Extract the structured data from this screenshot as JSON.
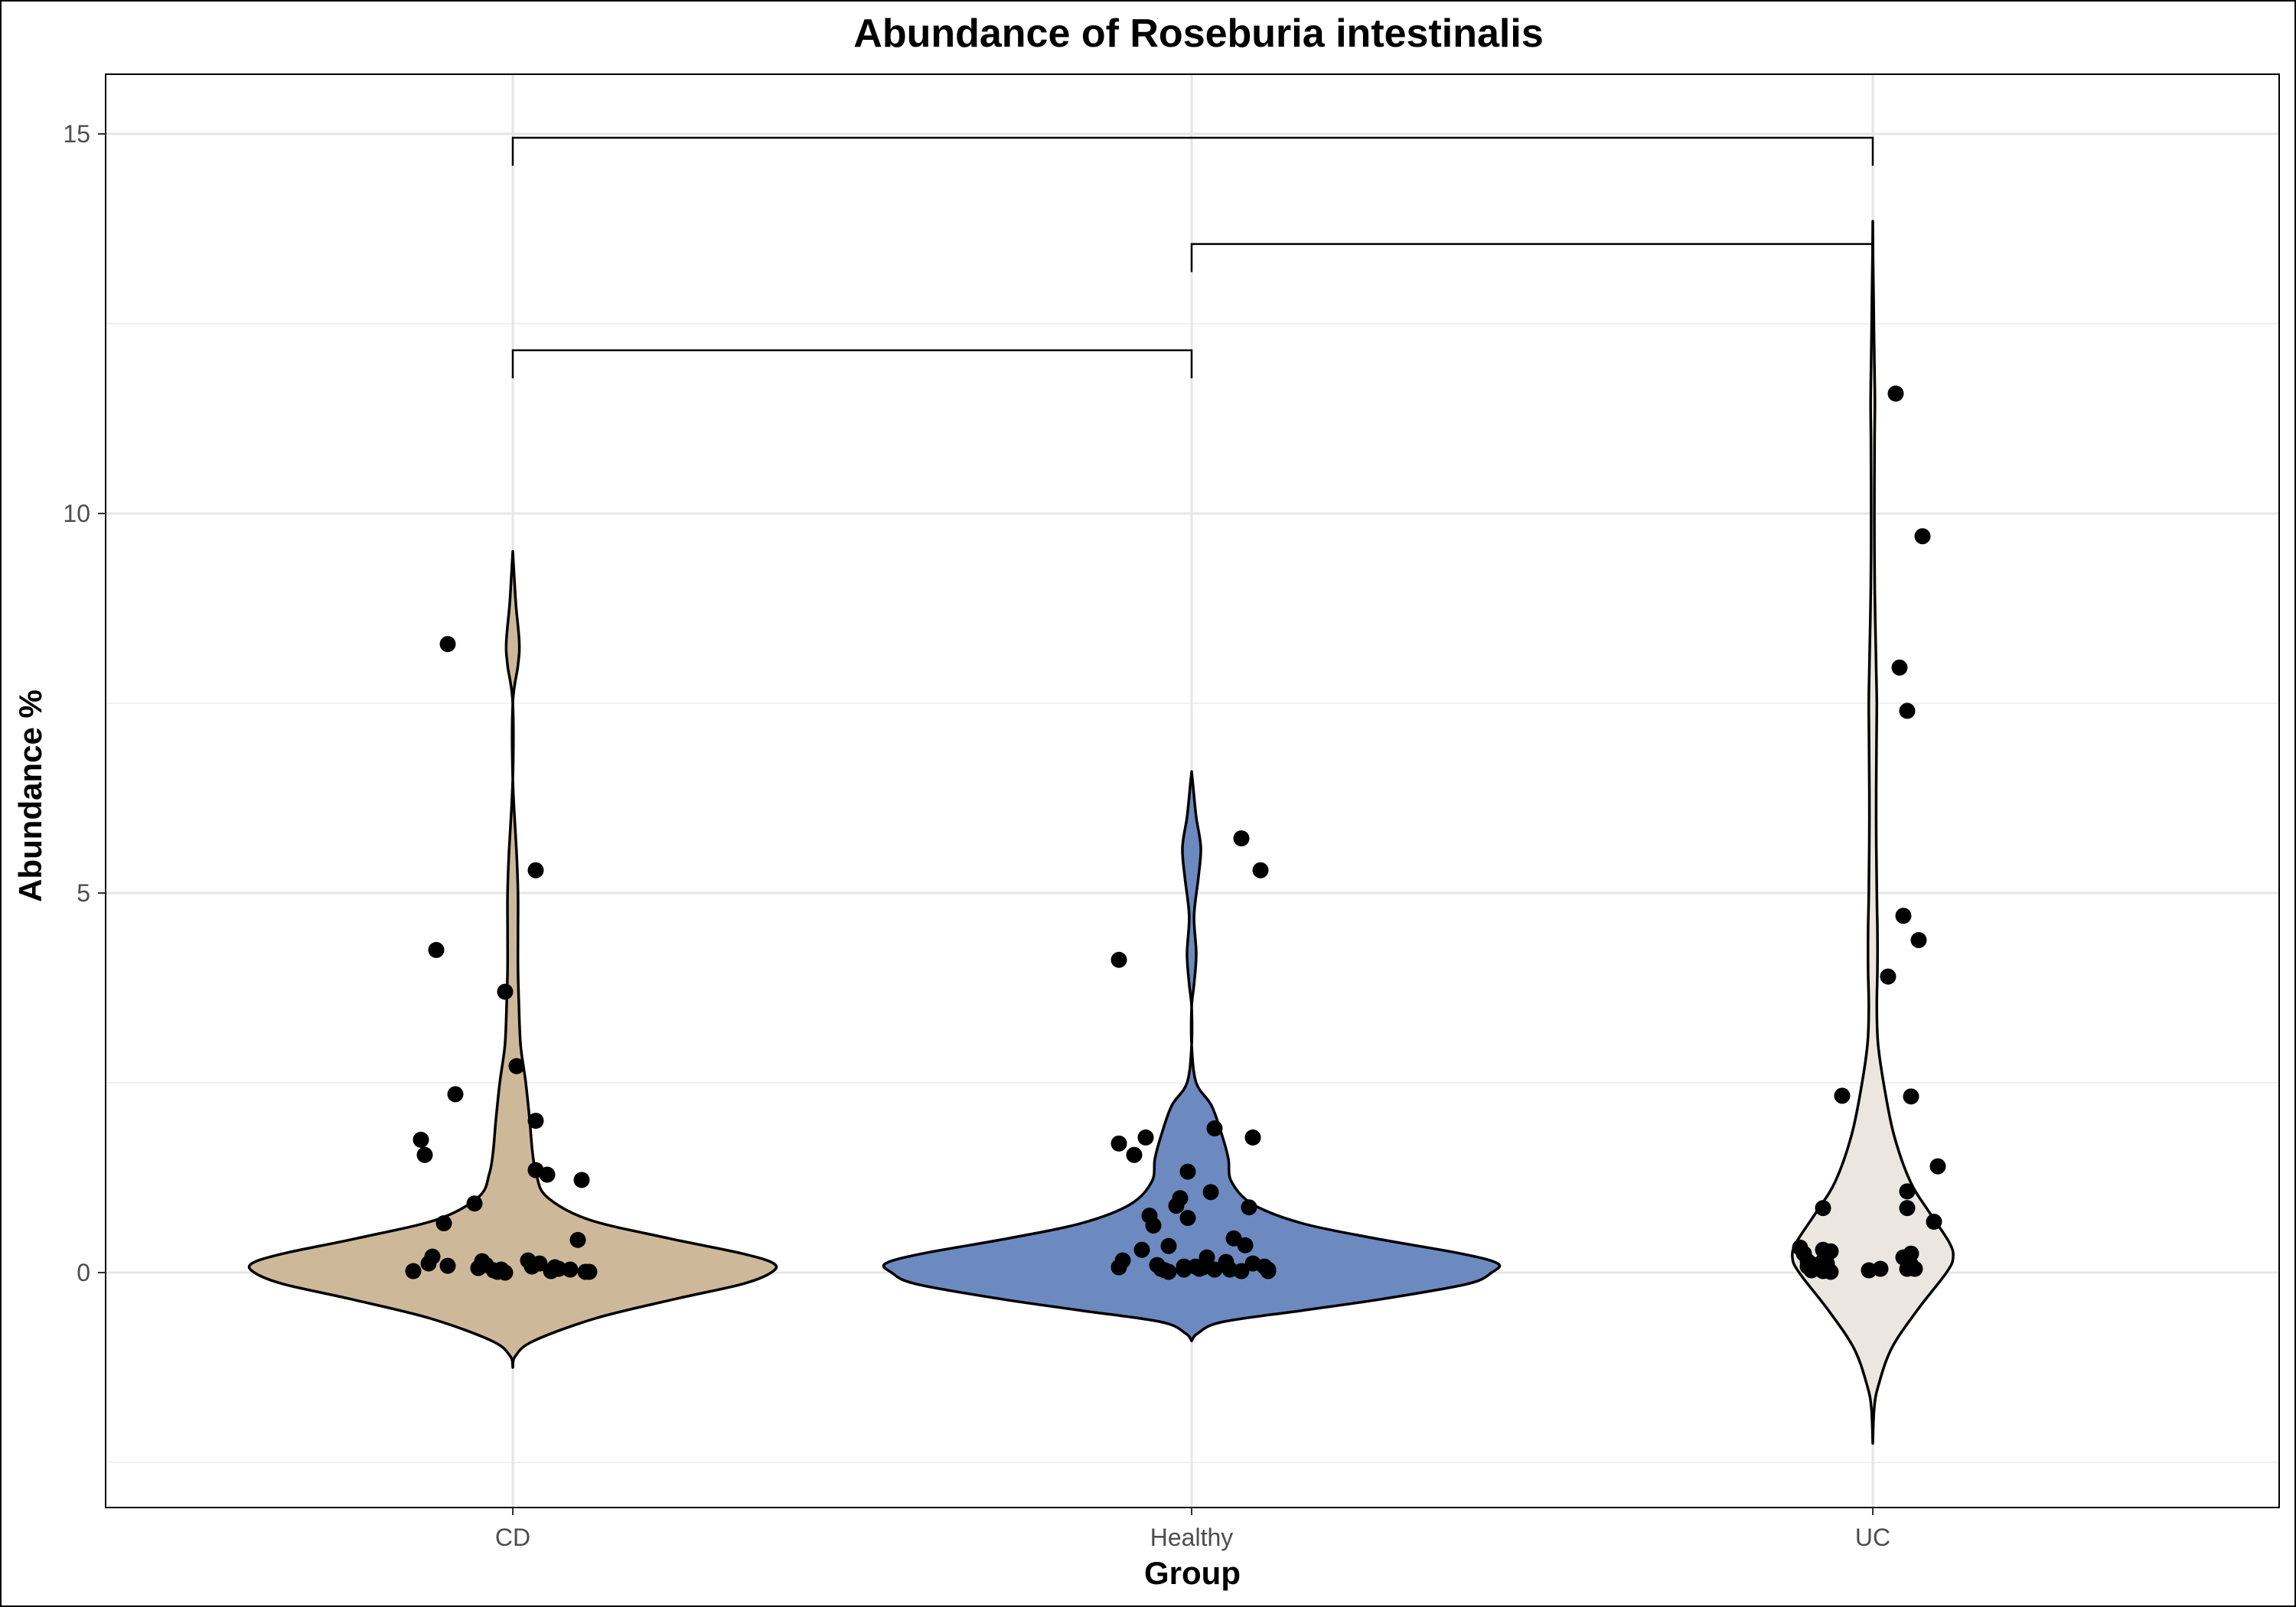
{
  "chart_data": {
    "type": "violin",
    "title": "Abundance of Roseburia intestinalis",
    "xlabel": "Group",
    "ylabel": "Abundance %",
    "ylim": [
      -3.15,
      15.8
    ],
    "y_ticks": [
      0,
      5,
      10,
      15
    ],
    "y_minor_ticks": [
      -2.5,
      2.5,
      7.5,
      12.5
    ],
    "grid": true,
    "legend": "none",
    "categories": [
      "CD",
      "Healthy",
      "UC"
    ],
    "groups": [
      {
        "name": "CD",
        "fill": "#cdb99a",
        "min": -1.25,
        "max": 9.5,
        "profile": [
          [
            -1.25,
            0
          ],
          [
            -1.1,
            0.01
          ],
          [
            -0.9,
            0.08
          ],
          [
            -0.6,
            0.32
          ],
          [
            -0.35,
            0.62
          ],
          [
            -0.15,
            0.88
          ],
          [
            0,
            0.99
          ],
          [
            0.12,
            1.0
          ],
          [
            0.25,
            0.88
          ],
          [
            0.45,
            0.6
          ],
          [
            0.7,
            0.29
          ],
          [
            1.0,
            0.13
          ],
          [
            1.3,
            0.09
          ],
          [
            1.6,
            0.075
          ],
          [
            2.0,
            0.065
          ],
          [
            2.5,
            0.05
          ],
          [
            3.0,
            0.03
          ],
          [
            3.6,
            0.023
          ],
          [
            4.0,
            0.02
          ],
          [
            4.5,
            0.02
          ],
          [
            5.0,
            0.02
          ],
          [
            5.5,
            0.015
          ],
          [
            6.5,
            0.0
          ],
          [
            7.5,
            0.0
          ],
          [
            8.0,
            0.02
          ],
          [
            8.3,
            0.025
          ],
          [
            8.8,
            0.012
          ],
          [
            9.2,
            0.005
          ],
          [
            9.5,
            0
          ]
        ],
        "points": [
          [
            -0.26,
            0.02
          ],
          [
            -0.24,
            1.75
          ],
          [
            -0.23,
            1.55
          ],
          [
            -0.22,
            0.12
          ],
          [
            -0.21,
            0.21
          ],
          [
            -0.2,
            4.25
          ],
          [
            -0.18,
            0.65
          ],
          [
            -0.17,
            8.28
          ],
          [
            -0.17,
            0.09
          ],
          [
            -0.15,
            2.35
          ],
          [
            -0.1,
            0.91
          ],
          [
            -0.09,
            0.06
          ],
          [
            -0.08,
            0.15
          ],
          [
            -0.07,
            0.1
          ],
          [
            -0.05,
            0.03
          ],
          [
            -0.04,
            0.01
          ],
          [
            -0.03,
            0.04
          ],
          [
            -0.02,
            0.0
          ],
          [
            -0.02,
            3.7
          ],
          [
            0.01,
            2.72
          ],
          [
            0.04,
            0.16
          ],
          [
            0.05,
            0.08
          ],
          [
            0.06,
            1.35
          ],
          [
            0.06,
            2.0
          ],
          [
            0.07,
            0.12
          ],
          [
            0.06,
            5.3
          ],
          [
            0.09,
            1.29
          ],
          [
            0.1,
            0.02
          ],
          [
            0.11,
            0.07
          ],
          [
            0.12,
            0.05
          ],
          [
            0.15,
            0.04
          ],
          [
            0.17,
            0.43
          ],
          [
            0.18,
            1.22
          ],
          [
            0.19,
            0.01
          ],
          [
            0.2,
            0.01
          ]
        ]
      },
      {
        "name": "Healthy",
        "fill": "#6c8ac0",
        "min": -0.9,
        "max": 6.6,
        "profile": [
          [
            -0.9,
            0
          ],
          [
            -0.8,
            0.02
          ],
          [
            -0.65,
            0.1
          ],
          [
            -0.5,
            0.36
          ],
          [
            -0.35,
            0.62
          ],
          [
            -0.15,
            0.9
          ],
          [
            0,
            0.98
          ],
          [
            0.12,
            1.0
          ],
          [
            0.25,
            0.88
          ],
          [
            0.45,
            0.6
          ],
          [
            0.65,
            0.36
          ],
          [
            0.9,
            0.2
          ],
          [
            1.2,
            0.13
          ],
          [
            1.5,
            0.12
          ],
          [
            1.8,
            0.1
          ],
          [
            2.2,
            0.065
          ],
          [
            2.5,
            0.015
          ],
          [
            3.0,
            0.0
          ],
          [
            3.5,
            0.0
          ],
          [
            3.8,
            0.008
          ],
          [
            4.2,
            0.015
          ],
          [
            4.7,
            0.008
          ],
          [
            5.2,
            0.022
          ],
          [
            5.6,
            0.03
          ],
          [
            6.0,
            0.015
          ],
          [
            6.4,
            0.005
          ],
          [
            6.6,
            0
          ]
        ],
        "points": [
          [
            -0.19,
            4.12
          ],
          [
            -0.19,
            1.7
          ],
          [
            -0.19,
            0.07
          ],
          [
            -0.18,
            0.16
          ],
          [
            -0.15,
            1.55
          ],
          [
            -0.13,
            0.3
          ],
          [
            -0.12,
            1.78
          ],
          [
            -0.11,
            0.75
          ],
          [
            -0.1,
            0.62
          ],
          [
            -0.09,
            0.1
          ],
          [
            -0.08,
            0.05
          ],
          [
            -0.07,
            0.03
          ],
          [
            -0.06,
            0.01
          ],
          [
            -0.06,
            0.35
          ],
          [
            -0.04,
            0.88
          ],
          [
            -0.03,
            0.98
          ],
          [
            -0.02,
            0.04
          ],
          [
            -0.02,
            0.08
          ],
          [
            -0.01,
            1.33
          ],
          [
            -0.01,
            0.72
          ],
          [
            0.01,
            0.08
          ],
          [
            0.02,
            0.05
          ],
          [
            0.03,
            0.07
          ],
          [
            0.04,
            0.2
          ],
          [
            0.05,
            1.06
          ],
          [
            0.06,
            1.9
          ],
          [
            0.06,
            0.04
          ],
          [
            0.09,
            0.14
          ],
          [
            0.1,
            0.04
          ],
          [
            0.11,
            0.45
          ],
          [
            0.13,
            0.02
          ],
          [
            0.13,
            5.72
          ],
          [
            0.14,
            0.36
          ],
          [
            0.15,
            0.86
          ],
          [
            0.16,
            0.12
          ],
          [
            0.16,
            1.78
          ],
          [
            0.18,
            5.3
          ],
          [
            0.19,
            0.08
          ],
          [
            0.2,
            0.02
          ],
          [
            0.2,
            0.04
          ]
        ]
      },
      {
        "name": "UC",
        "fill": "#ebe7e0",
        "min": -2.25,
        "max": 13.85,
        "profile": [
          [
            -2.25,
            0
          ],
          [
            -1.8,
            0.01
          ],
          [
            -1.5,
            0.04
          ],
          [
            -1.0,
            0.14
          ],
          [
            -0.5,
            0.33
          ],
          [
            0,
            0.55
          ],
          [
            0.2,
            0.6
          ],
          [
            0.4,
            0.57
          ],
          [
            0.8,
            0.42
          ],
          [
            1.2,
            0.28
          ],
          [
            1.8,
            0.16
          ],
          [
            2.4,
            0.09
          ],
          [
            3.0,
            0.04
          ],
          [
            3.5,
            0.03
          ],
          [
            4.0,
            0.035
          ],
          [
            4.5,
            0.035
          ],
          [
            5.0,
            0.03
          ],
          [
            6.0,
            0.025
          ],
          [
            7.0,
            0.028
          ],
          [
            7.5,
            0.03
          ],
          [
            8.0,
            0.025
          ],
          [
            9.0,
            0.015
          ],
          [
            10.0,
            0.012
          ],
          [
            11.0,
            0.014
          ],
          [
            11.5,
            0.016
          ],
          [
            12.0,
            0.012
          ],
          [
            12.8,
            0.006
          ],
          [
            13.4,
            0.002
          ],
          [
            13.85,
            0
          ]
        ],
        "points": [
          [
            -0.19,
            0.33
          ],
          [
            -0.18,
            0.25
          ],
          [
            -0.17,
            0.15
          ],
          [
            -0.17,
            0.08
          ],
          [
            -0.16,
            0.03
          ],
          [
            -0.15,
            0.1
          ],
          [
            -0.14,
            0.05
          ],
          [
            -0.13,
            0.85
          ],
          [
            -0.13,
            0.3
          ],
          [
            -0.13,
            0.02
          ],
          [
            -0.13,
            0.15
          ],
          [
            -0.13,
            0.08
          ],
          [
            -0.12,
            0.12
          ],
          [
            -0.12,
            0.03
          ],
          [
            -0.11,
            0.01
          ],
          [
            -0.11,
            0.28
          ],
          [
            -0.08,
            2.33
          ],
          [
            -0.01,
            0.03
          ],
          [
            0.02,
            0.05
          ],
          [
            0.04,
            3.9
          ],
          [
            0.06,
            11.58
          ],
          [
            0.07,
            7.97
          ],
          [
            0.08,
            4.7
          ],
          [
            0.08,
            0.2
          ],
          [
            0.09,
            7.4
          ],
          [
            0.09,
            0.05
          ],
          [
            0.09,
            0.85
          ],
          [
            0.09,
            1.07
          ],
          [
            0.1,
            0.25
          ],
          [
            0.1,
            2.32
          ],
          [
            0.1,
            0.1
          ],
          [
            0.11,
            0.05
          ],
          [
            0.12,
            4.38
          ],
          [
            0.13,
            9.7
          ],
          [
            0.16,
            0.67
          ],
          [
            0.17,
            1.4
          ]
        ]
      }
    ],
    "significance_brackets": [
      {
        "from": "CD",
        "to": "UC",
        "y": 14.95,
        "left_tick_to": 14.58,
        "right_tick_to": 14.58
      },
      {
        "from": "Healthy",
        "to": "UC",
        "y": 13.55,
        "left_tick_to": 13.18,
        "right_tick_to": 13.55
      },
      {
        "from": "CD",
        "to": "Healthy",
        "y": 12.15,
        "left_tick_to": 11.78,
        "right_tick_to": 11.78
      }
    ]
  }
}
